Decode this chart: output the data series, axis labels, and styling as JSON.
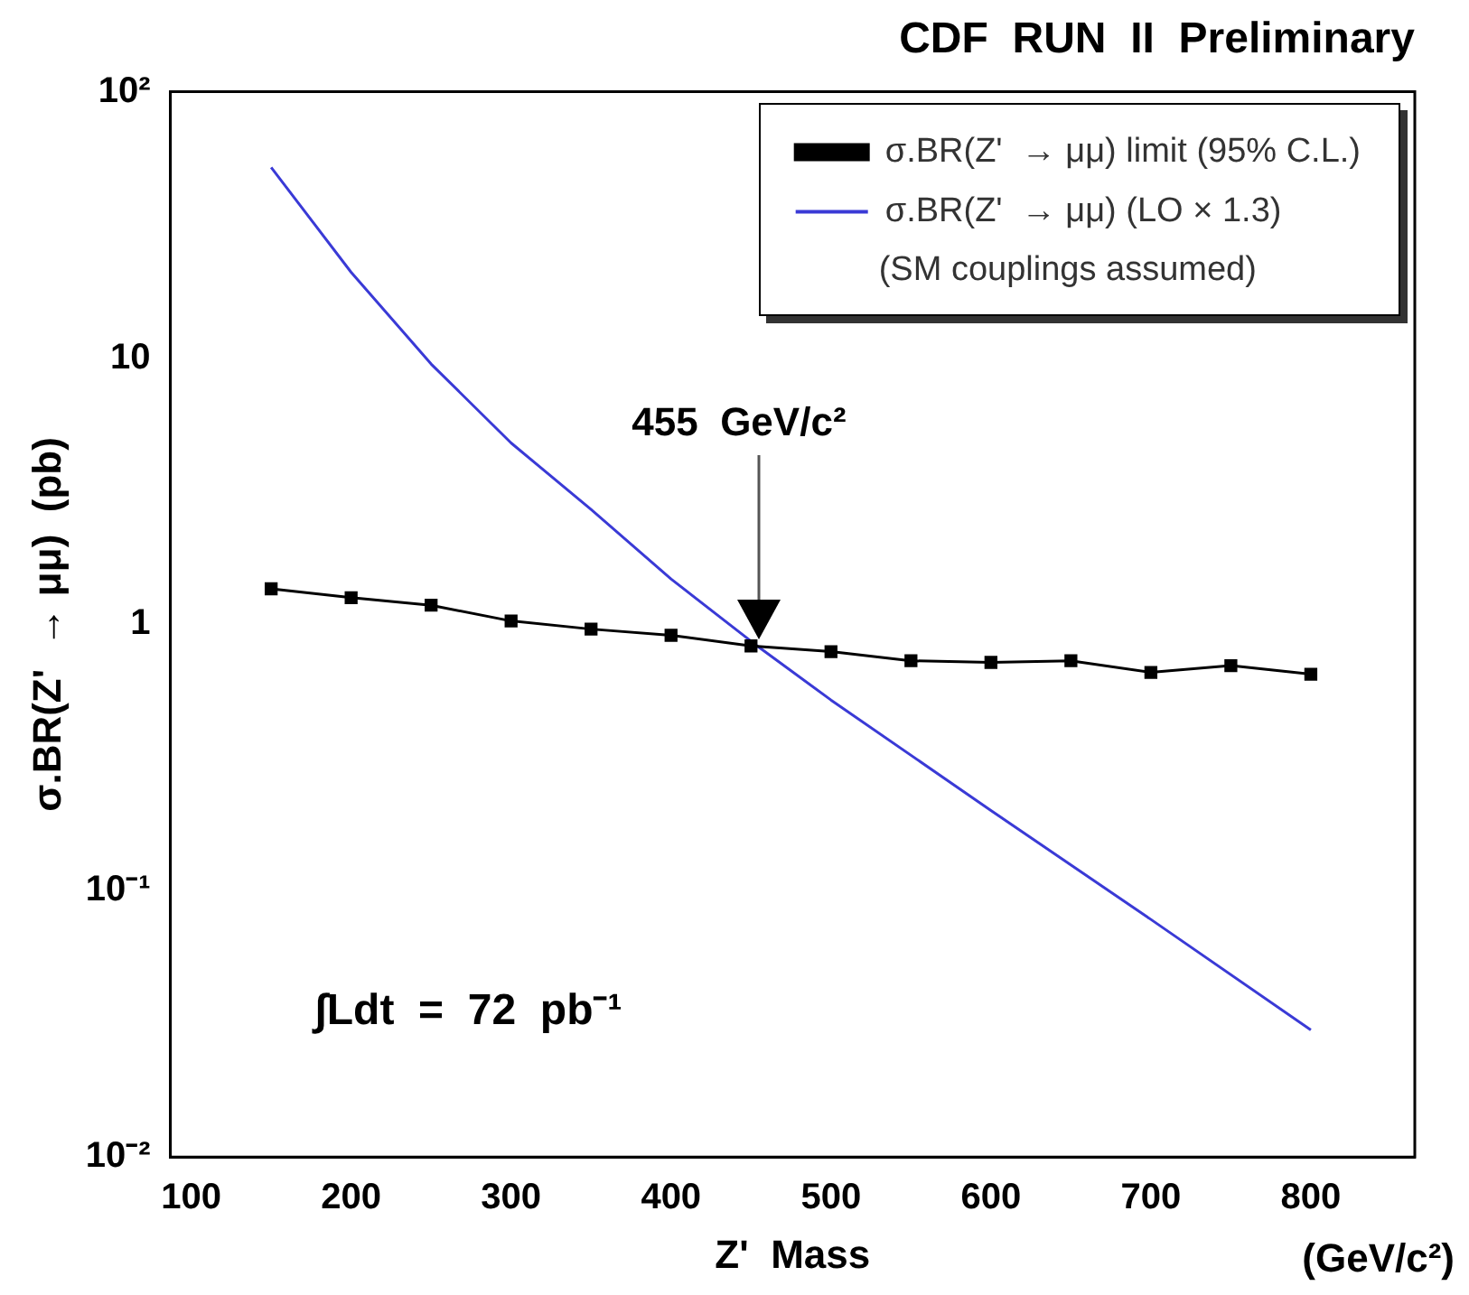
{
  "chart_data": {
    "type": "line",
    "title": "CDF  RUN  II  Preliminary",
    "xlabel": "Z'  Mass",
    "ylabel": "σ.BR(Z'  → μμ)  (pb)",
    "log": "y",
    "legend": "top right",
    "grid": false,
    "xlim": [
      87,
      865
    ],
    "xticks": [
      100,
      200,
      300,
      400,
      500,
      600,
      700,
      800
    ],
    "ylim": [
      0.01,
      100
    ],
    "yticks": [
      {
        "value": 0.01,
        "label": "10⁻²"
      },
      {
        "value": 0.1,
        "label": "10⁻¹"
      },
      1,
      10,
      {
        "value": 100,
        "label": "10²"
      }
    ],
    "series": [
      {
        "name": "σ.BR(Z'  → μμ) limit (95% C.L.)",
        "color": "#000000",
        "marker": "square",
        "x": [
          150,
          200,
          250,
          300,
          350,
          400,
          450,
          500,
          550,
          600,
          650,
          700,
          750,
          800
        ],
        "values": [
          1.36,
          1.26,
          1.18,
          1.03,
          0.96,
          0.91,
          0.83,
          0.79,
          0.73,
          0.72,
          0.73,
          0.66,
          0.7,
          0.65
        ]
      },
      {
        "name": "σ.BR(Z'  → μμ) (LO × 1.3)",
        "color": "#3a3ad6",
        "marker": "none",
        "x": [
          150,
          200,
          250,
          300,
          350,
          400,
          455,
          500,
          600,
          700,
          800
        ],
        "values": [
          52,
          21,
          9.5,
          4.8,
          2.7,
          1.48,
          0.82,
          0.52,
          0.2,
          0.078,
          0.03
        ]
      }
    ],
    "annotations": [
      "455  GeV/c²",
      "(SM couplings assumed)",
      "∫Ldt  =  72  pb⁻¹",
      "(GeV/c²)"
    ]
  }
}
